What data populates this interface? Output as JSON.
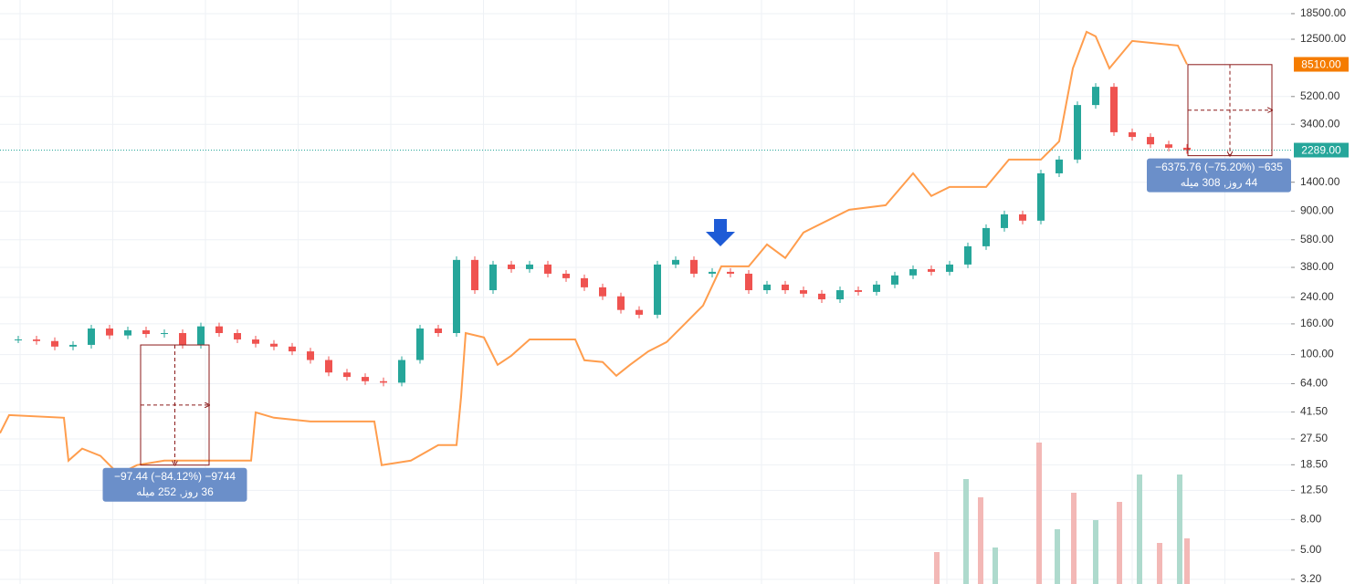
{
  "chart_data": {
    "type": "candlestick",
    "log_scale": true,
    "grid": true,
    "ylim": [
      2.98,
      22800
    ],
    "xlim": [
      0,
      70.7
    ],
    "yticks": [
      {
        "value": 18500,
        "label": "18500.00"
      },
      {
        "value": 12500,
        "label": "12500.00"
      },
      {
        "value": 5200,
        "label": "5200.00"
      },
      {
        "value": 3400,
        "label": "3400.00"
      },
      {
        "value": 1400,
        "label": "1400.00"
      },
      {
        "value": 900,
        "label": "900.00"
      },
      {
        "value": 580,
        "label": "580.00"
      },
      {
        "value": 380,
        "label": "380.00"
      },
      {
        "value": 240,
        "label": "240.00"
      },
      {
        "value": 160,
        "label": "160.00"
      },
      {
        "value": 100,
        "label": "100.00"
      },
      {
        "value": 64,
        "label": "64.00"
      },
      {
        "value": 41.5,
        "label": "41.50"
      },
      {
        "value": 27.5,
        "label": "27.50"
      },
      {
        "value": 18.5,
        "label": "18.50"
      },
      {
        "value": 12.5,
        "label": "12.50"
      },
      {
        "value": 8,
        "label": "8.00"
      },
      {
        "value": 5,
        "label": "5.00"
      },
      {
        "value": 3.2,
        "label": "3.20"
      }
    ],
    "price_markers": [
      {
        "value": 8510,
        "label": "8510.00",
        "color": "#f57c00"
      },
      {
        "value": 2289,
        "label": "2289.00",
        "color": "#26a69a",
        "line": true
      }
    ],
    "up_color": "#26a69a",
    "down_color": "#ef5350",
    "closes": [
      126,
      126,
      123,
      113,
      116,
      149,
      134,
      145,
      137,
      139,
      116,
      154,
      139,
      126,
      118,
      113,
      105,
      92,
      76,
      71,
      66.5,
      65,
      92,
      149,
      139,
      426,
      268,
      397,
      370,
      397,
      345,
      322,
      280,
      244,
      198,
      184,
      397,
      426,
      345,
      355,
      345,
      268,
      292,
      268,
      254,
      233,
      268,
      261,
      292,
      336,
      370,
      355,
      397,
      525,
      694,
      856,
      777,
      1604,
      1981,
      4565,
      6035,
      3010,
      2800,
      2500,
      2374,
      2289
    ],
    "compare": {
      "color": "#ff9d4d",
      "x": [
        0,
        0.5,
        3.5,
        3.75,
        4.5,
        5.5,
        6.5,
        7.5,
        9,
        11.5,
        13.75,
        14,
        15,
        17,
        20.5,
        20.9,
        22.5,
        24,
        25,
        25.25,
        25.5,
        26.5,
        27.25,
        28,
        29,
        31.5,
        32,
        33,
        33.75,
        34.5,
        35.5,
        36.5,
        37.5,
        38.5,
        39.5,
        41,
        42,
        43,
        44,
        45.5,
        46.5,
        48.5,
        50,
        51,
        52,
        54,
        55.25,
        57,
        58,
        58.75,
        59.5,
        60,
        60.75,
        62,
        64.5,
        65
      ],
      "values": [
        30.0,
        39.6,
        38.0,
        19.7,
        23.7,
        21.2,
        16.0,
        18.4,
        19.7,
        19.7,
        19.7,
        41.3,
        38.0,
        35.9,
        35.9,
        18.4,
        19.7,
        25.0,
        25.0,
        52.4,
        139,
        130,
        85.5,
        98.3,
        126,
        126,
        91.7,
        89.2,
        72.3,
        85.5,
        105,
        121,
        160,
        212,
        386,
        386,
        540,
        439,
        648,
        799,
        918,
        984,
        1606,
        1133,
        1301,
        1301,
        1979,
        1979,
        2619,
        8003,
        13995,
        13048,
        8003,
        12168,
        11346,
        8510
      ]
    },
    "volume": {
      "lim": [
        0,
        160
      ],
      "x": [
        51.3,
        52.9,
        53.7,
        54.5,
        56.9,
        57.9,
        58.8,
        60,
        61.3,
        62.4,
        63.5,
        64.6,
        65
      ],
      "values": [
        35,
        115,
        95,
        40,
        155,
        60,
        100,
        70,
        90,
        120,
        45,
        120,
        50
      ]
    },
    "measures": [
      {
        "start": 7.7,
        "end": 11.45,
        "price_from": 115.84,
        "price_to": 18.4,
        "text": "−97.44 (−84.12%) −9744",
        "detail": "36 روز, 252 میله"
      },
      {
        "start": 65.05,
        "end": 69.65,
        "price_from": 8478,
        "price_to": 2102,
        "text": "−6375.76 (−75.20%) −635",
        "detail": "44 روز, 308 میله"
      }
    ]
  }
}
